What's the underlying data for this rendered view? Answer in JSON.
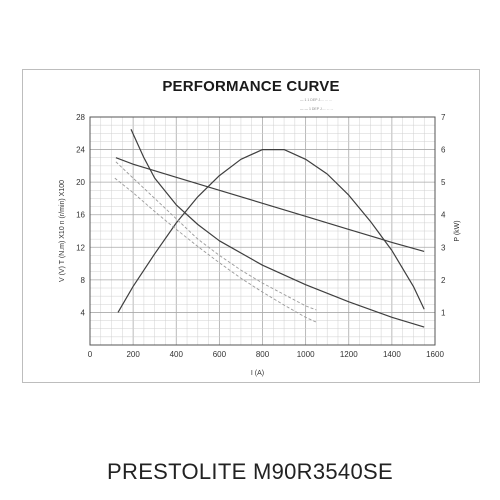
{
  "caption": "PRESTOLITE M90R3540SE",
  "chart_data": {
    "type": "line",
    "title": "PERFORMANCE CURVE",
    "xlabel": "I (A)",
    "ylabel_left": "V (V)  T (N.m) X10  n (r/min) X100",
    "ylabel_right": "P (kW)",
    "xlim": [
      0,
      1600
    ],
    "ylim_left": [
      0,
      28
    ],
    "ylim_right": [
      0,
      7
    ],
    "x_ticks": [
      "0",
      "200",
      "400",
      "600",
      "800",
      "1000",
      "1200",
      "1400",
      "1600"
    ],
    "y_left_ticks": [
      "4",
      "8",
      "12",
      "16",
      "20",
      "24",
      "28"
    ],
    "y_right_ticks": [
      "1",
      "2",
      "3",
      "4",
      "5",
      "6",
      "7"
    ],
    "grid": true,
    "legend": {
      "placement": "top-right",
      "entries": [
        "— 1 1 DEP   J.... ... ...",
        "— — 1 DEP   J.... ... ..."
      ]
    },
    "series": [
      {
        "axis": "left",
        "style": "solid",
        "x": [
          120,
          200,
          400,
          600,
          800,
          1000,
          1200,
          1400,
          1550
        ],
        "y": [
          23,
          22.2,
          20.6,
          19,
          17.4,
          15.8,
          14.2,
          12.6,
          11.5
        ]
      },
      {
        "axis": "left",
        "style": "solid",
        "x": [
          190,
          250,
          300,
          400,
          500,
          600,
          800,
          1000,
          1200,
          1400,
          1550
        ],
        "y": [
          26.5,
          23,
          20.5,
          17.2,
          14.8,
          12.8,
          9.8,
          7.4,
          5.3,
          3.4,
          2.2
        ]
      },
      {
        "axis": "right",
        "style": "solid",
        "x": [
          130,
          200,
          300,
          400,
          500,
          600,
          700,
          800,
          900,
          1000,
          1100,
          1200,
          1300,
          1400,
          1500,
          1550
        ],
        "y": [
          1,
          1.8,
          2.8,
          3.75,
          4.55,
          5.2,
          5.7,
          6.0,
          6.0,
          5.7,
          5.25,
          4.6,
          3.8,
          2.9,
          1.8,
          1.1
        ]
      },
      {
        "axis": "left",
        "style": "dashed",
        "x": [
          120,
          200,
          300,
          400,
          500,
          600,
          700,
          800,
          900,
          1000,
          1050
        ],
        "y": [
          22.5,
          20.5,
          18,
          15.5,
          13,
          11,
          9.2,
          7.6,
          6.2,
          4.8,
          4.3
        ]
      },
      {
        "axis": "left",
        "style": "dashed",
        "x": [
          115,
          200,
          300,
          400,
          500,
          600,
          700,
          800,
          900,
          1000,
          1050
        ],
        "y": [
          20.5,
          18.7,
          16.4,
          14.2,
          12.1,
          10.1,
          8.2,
          6.5,
          4.9,
          3.4,
          2.8
        ]
      }
    ]
  }
}
